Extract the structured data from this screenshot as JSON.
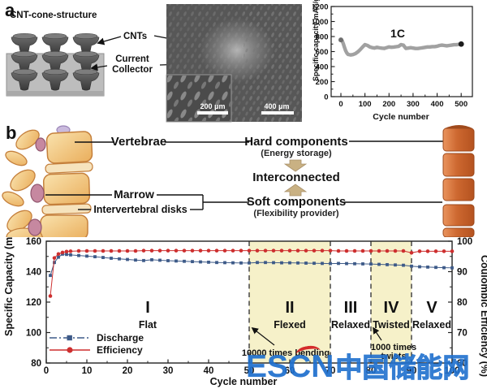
{
  "panels": {
    "a": "a",
    "b": "b"
  },
  "schematic": {
    "title": "CNT-cone-structure",
    "cnts_label": "CNTs",
    "collector_line1": "Current",
    "collector_line2": "Collector"
  },
  "sem": {
    "inset_scalebar": "200 μm",
    "main_scalebar": "400 μm"
  },
  "anatomy": {
    "vertebrae": "Vertebrae",
    "marrow": "Marrow",
    "disks": "Intervertebral disks",
    "hard_title": "Hard components",
    "hard_sub": "(Energy storage)",
    "interconnected": "Interconnected",
    "soft_title": "Soft components",
    "soft_sub": "(Flexibility provider)"
  },
  "watermark": {
    "latin": "ESCN",
    "cjk": "中国储能网"
  },
  "chart_data": [
    {
      "id": "rate-cycling",
      "type": "scatter",
      "annotation": "1C",
      "xlabel": "Cycle number",
      "ylabel": "Specific capacity mAh/g",
      "xlim": [
        0,
        500
      ],
      "xticks": [
        0,
        100,
        200,
        300,
        400,
        500
      ],
      "ylim": [
        0,
        1200
      ],
      "yticks": [
        0,
        200,
        400,
        600,
        800,
        1000,
        1200
      ],
      "grid": false,
      "series": [
        {
          "name": "capacity",
          "color": "#9c9c9c",
          "x": [
            0,
            5,
            10,
            15,
            20,
            25,
            30,
            40,
            50,
            60,
            70,
            80,
            90,
            100,
            110,
            120,
            130,
            140,
            150,
            160,
            170,
            180,
            190,
            200,
            210,
            220,
            230,
            240,
            250,
            260,
            270,
            280,
            290,
            300,
            310,
            320,
            330,
            340,
            350,
            360,
            370,
            380,
            390,
            400,
            410,
            420,
            430,
            440,
            450,
            460,
            470,
            480,
            490,
            500
          ],
          "y": [
            755,
            745,
            705,
            655,
            610,
            580,
            562,
            555,
            560,
            572,
            595,
            625,
            660,
            692,
            682,
            662,
            652,
            647,
            657,
            650,
            645,
            642,
            652,
            662,
            657,
            660,
            665,
            670,
            692,
            685,
            642,
            647,
            652,
            647,
            641,
            641,
            646,
            651,
            656,
            661,
            661,
            666,
            666,
            671,
            681,
            686,
            681,
            676,
            681,
            686,
            691,
            691,
            696,
            700
          ]
        }
      ],
      "end_marker_color": "#1c1c1c"
    },
    {
      "id": "flex-cycling",
      "type": "scatter",
      "xlabel": "Cycle number",
      "ylabel_left": "Specific Capacity (mAh/g)",
      "ylabel_right": "Coulombic Efficiency (%)",
      "xlim": [
        0,
        100
      ],
      "xticks": [
        0,
        10,
        20,
        30,
        40,
        50,
        60,
        70,
        80,
        90,
        100
      ],
      "ylim_left": [
        80,
        160
      ],
      "yticks_left": [
        80,
        100,
        120,
        140,
        160
      ],
      "ylim_right": [
        60,
        100
      ],
      "yticks_right": [
        60,
        70,
        80,
        90,
        100
      ],
      "grid": false,
      "legend_position": "lower-left",
      "x": [
        1,
        2,
        3,
        4,
        5,
        6,
        8,
        10,
        12,
        14,
        16,
        18,
        20,
        22,
        24,
        26,
        28,
        30,
        32,
        34,
        36,
        38,
        40,
        42,
        44,
        46,
        48,
        50,
        52,
        54,
        56,
        58,
        60,
        62,
        64,
        66,
        68,
        70,
        72,
        74,
        76,
        78,
        80,
        82,
        84,
        86,
        88,
        90,
        92,
        94,
        96,
        98,
        100
      ],
      "series": [
        {
          "name": "Discharge",
          "axis": "left",
          "color": "#3d5a88",
          "marker": "square",
          "values": [
            137.5,
            146.0,
            149.5,
            151.5,
            151.3,
            151.0,
            150.6,
            150.2,
            149.8,
            149.3,
            148.8,
            148.4,
            148.0,
            147.6,
            147.3,
            147.8,
            147.5,
            147.2,
            147.0,
            146.8,
            146.6,
            146.4,
            146.2,
            146.0,
            145.9,
            145.8,
            145.7,
            145.7,
            146.0,
            146.0,
            145.9,
            145.8,
            145.8,
            145.7,
            145.6,
            145.5,
            145.4,
            145.3,
            145.4,
            145.3,
            145.2,
            145.1,
            145.0,
            144.8,
            144.6,
            144.4,
            144.2,
            143.6,
            143.2,
            143.0,
            142.8,
            142.6,
            142.5
          ]
        },
        {
          "name": "Efficiency",
          "axis": "right",
          "color": "#cd2f2f",
          "marker": "circle",
          "values": [
            82.0,
            94.5,
            95.8,
            96.3,
            96.6,
            96.7,
            96.8,
            96.8,
            96.8,
            96.8,
            96.8,
            96.8,
            96.8,
            96.8,
            96.9,
            96.9,
            96.9,
            96.9,
            96.9,
            96.9,
            96.9,
            96.9,
            96.9,
            96.9,
            96.9,
            96.9,
            96.9,
            96.9,
            96.9,
            96.9,
            96.9,
            96.9,
            96.9,
            96.9,
            96.9,
            96.9,
            96.9,
            96.9,
            96.8,
            96.8,
            96.8,
            96.8,
            96.8,
            96.8,
            96.8,
            96.8,
            96.8,
            96.2,
            96.7,
            96.7,
            96.7,
            96.7,
            96.7
          ]
        }
      ],
      "regions": [
        {
          "numeral": "I",
          "label": "Flat",
          "from": 0,
          "to": 50,
          "shaded": false
        },
        {
          "numeral": "II",
          "label": "Flexed",
          "from": 50,
          "to": 70,
          "shaded": true
        },
        {
          "numeral": "III",
          "label": "Relaxed",
          "from": 70,
          "to": 80,
          "shaded": false
        },
        {
          "numeral": "IV",
          "label": "Twisted",
          "from": 80,
          "to": 90,
          "shaded": true
        },
        {
          "numeral": "V",
          "label": "Relaxed",
          "from": 90,
          "to": 100,
          "shaded": false
        }
      ],
      "region_shade_color": "#f6f1c9",
      "annotations": [
        {
          "lines": [
            "10000 times bending"
          ],
          "at_cycle": 50
        },
        {
          "lines": [
            "1000 times",
            "twists"
          ],
          "at_cycle": 80
        }
      ]
    }
  ]
}
